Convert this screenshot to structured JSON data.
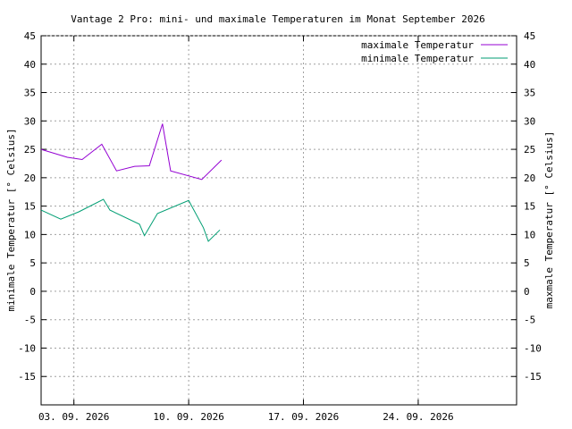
{
  "chart_data": {
    "type": "line",
    "title": "Vantage 2 Pro: mini- und maximale Temperaturen im Monat September 2026",
    "ylabel_left": "minimale Temperatur [° Celsius]",
    "ylabel_right": "maxmale Temperatur [° Celsius]",
    "xlabel": "",
    "ylim": [
      -20,
      45
    ],
    "yticks": [
      -15,
      -10,
      -5,
      0,
      5,
      10,
      15,
      20,
      25,
      30,
      35,
      40,
      45
    ],
    "xlim": [
      1.0,
      30.0
    ],
    "xticks": [
      {
        "x": 3,
        "label": "03. 09. 2026"
      },
      {
        "x": 10,
        "label": "10. 09. 2026"
      },
      {
        "x": 17,
        "label": "17. 09. 2026"
      },
      {
        "x": 24,
        "label": "24. 09. 2026"
      }
    ],
    "grid": true,
    "legend_position": "top-right",
    "series": [
      {
        "name": "maximale Temperatur",
        "color": "#9400d3",
        "x": [
          1.0,
          2.6,
          3.5,
          4.7,
          5.6,
          6.7,
          7.6,
          8.4,
          8.9,
          10.8,
          12.0
        ],
        "y": [
          25.0,
          23.6,
          23.2,
          25.9,
          21.2,
          22.0,
          22.1,
          29.5,
          21.2,
          19.7,
          23.1
        ]
      },
      {
        "name": "minimale Temperatur",
        "color": "#009e73",
        "x": [
          1.0,
          2.2,
          3.3,
          4.8,
          5.2,
          7.0,
          7.3,
          8.1,
          10.0,
          10.9,
          11.2,
          11.9
        ],
        "y": [
          14.3,
          12.7,
          14.0,
          16.2,
          14.3,
          11.8,
          9.8,
          13.7,
          16.0,
          11.2,
          8.8,
          10.8
        ]
      }
    ]
  }
}
